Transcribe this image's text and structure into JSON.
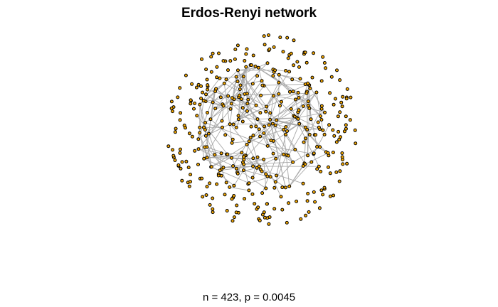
{
  "figure": {
    "title": "Erdos-Renyi network",
    "caption": "n = 423, p = 0.0045"
  },
  "graph": {
    "model": "erdos-renyi",
    "n": 423,
    "p": 0.0045,
    "layout": "force-directed",
    "node_color": "#f5a800",
    "node_border_color": "#000000",
    "edge_color": "#a9a9a9"
  }
}
